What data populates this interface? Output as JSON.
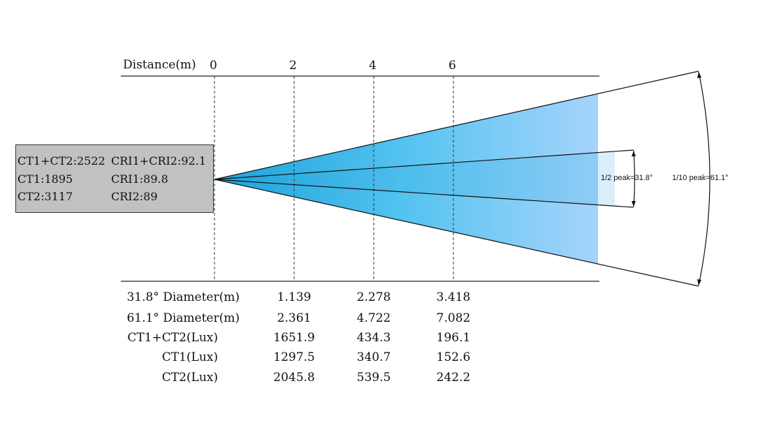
{
  "distance_axis": {
    "label": "Distance(m)",
    "ticks": [
      "0",
      "2",
      "4",
      "6"
    ]
  },
  "info": {
    "rows": [
      {
        "left": "CT1+CT2:2522",
        "right": "CRI1+CRI2:92.1"
      },
      {
        "left": "CT1:1895",
        "right": "CRI1:89.8"
      },
      {
        "left": "CT2:3117",
        "right": "CRI2:89"
      }
    ]
  },
  "beam": {
    "half_peak_label": "1/2 peak=31.8°",
    "tenth_peak_label": "1/10 peak=61.1°",
    "colors": {
      "start": "#1aa3d9",
      "mid": "#55c3f0",
      "end": "#a6d4fb"
    }
  },
  "table": {
    "rows": [
      {
        "label": "31.8° Diameter(m)",
        "values": [
          "1.139",
          "2.278",
          "3.418"
        ]
      },
      {
        "label": "61.1° Diameter(m)",
        "values": [
          "2.361",
          "4.722",
          "7.082"
        ]
      },
      {
        "label": "CT1+CT2(Lux)",
        "values": [
          "1651.9",
          "434.3",
          "196.1"
        ]
      },
      {
        "label": "CT1(Lux)",
        "values": [
          "1297.5",
          "340.7",
          "152.6"
        ]
      },
      {
        "label": "CT2(Lux)",
        "values": [
          "2045.8",
          "539.5",
          "242.2"
        ]
      }
    ]
  }
}
